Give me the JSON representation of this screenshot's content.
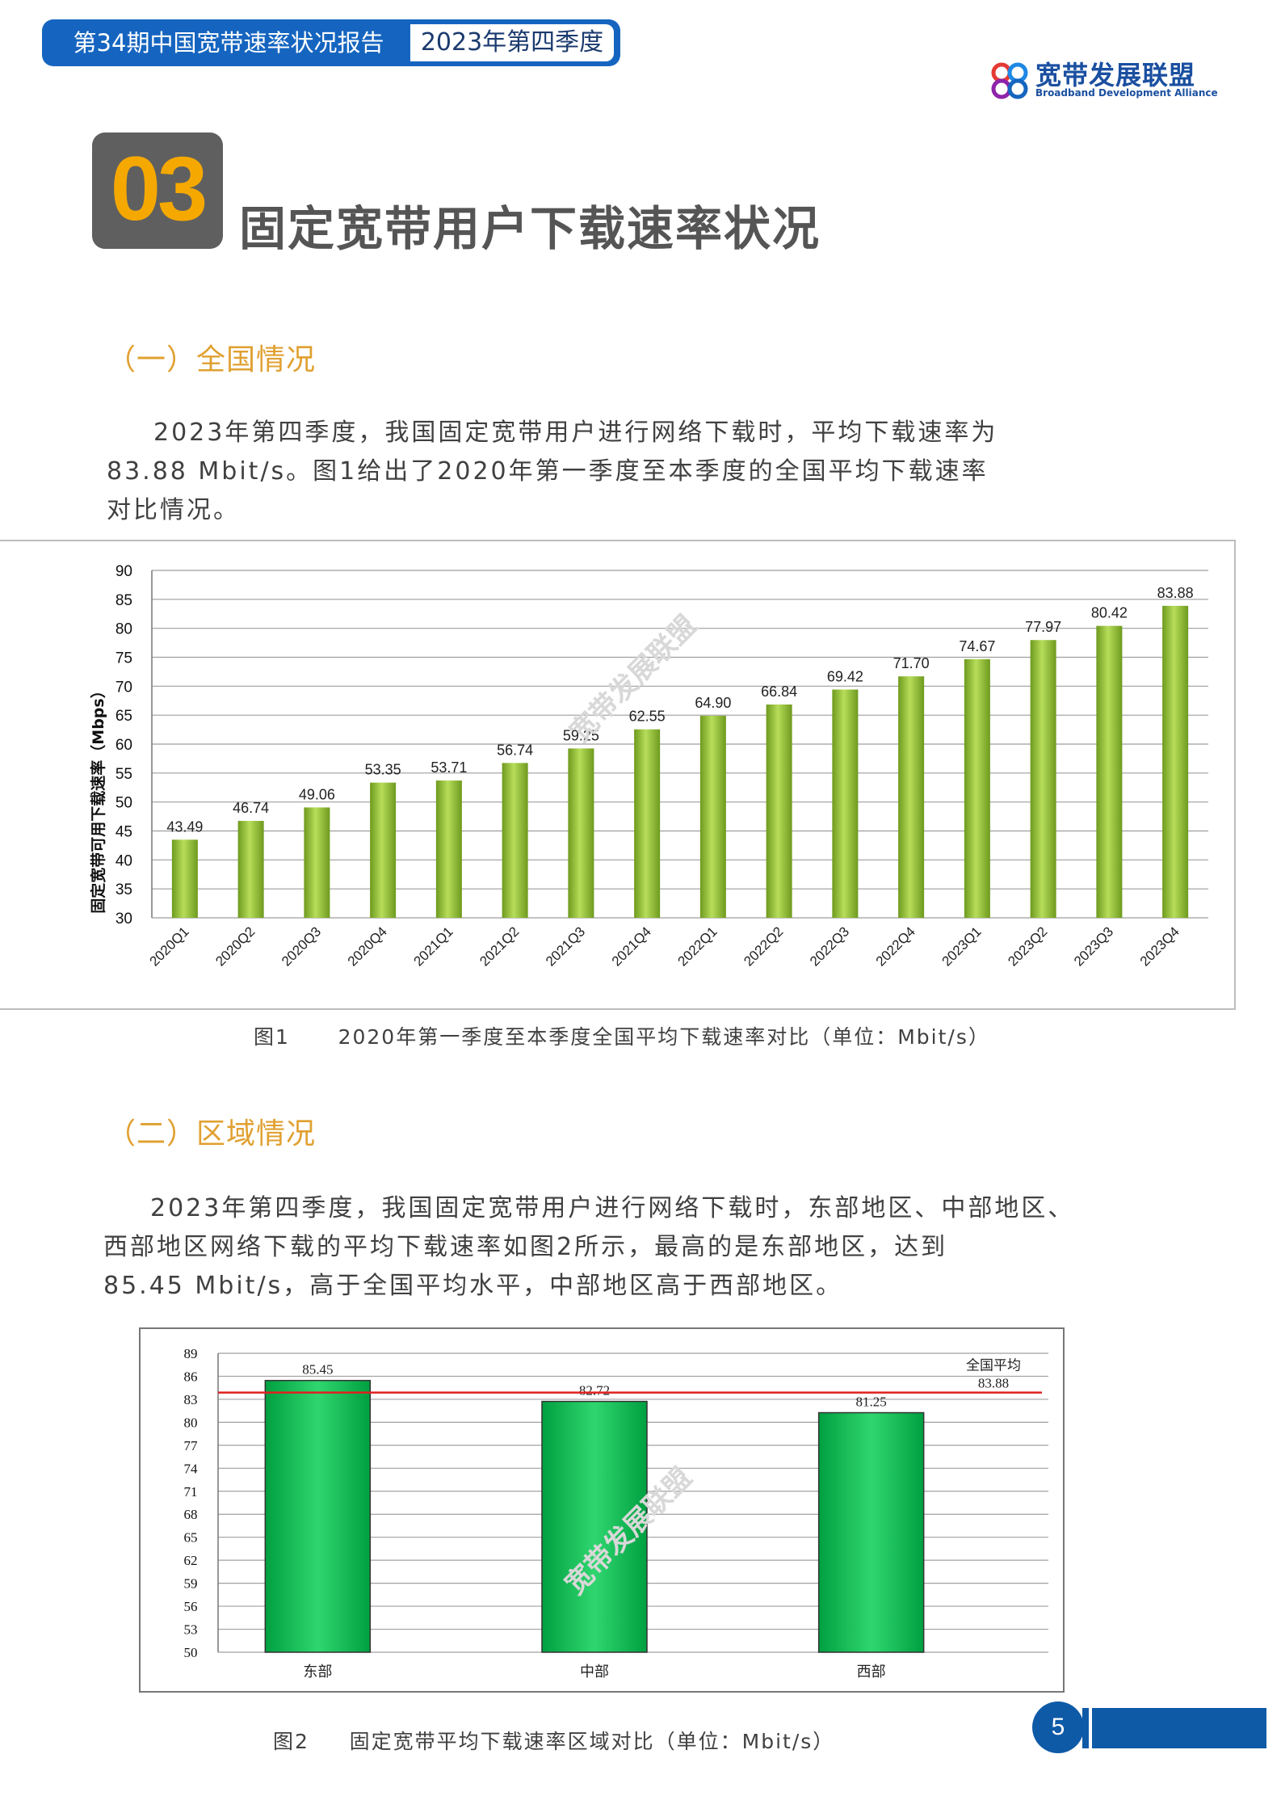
{
  "header": {
    "report_title": "第34期中国宽带速率状况报告",
    "period": "2023年第四季度"
  },
  "logo": {
    "name_cn": "宽带发展联盟",
    "name_en": "Broadband Development Alliance"
  },
  "chapter": {
    "number": "03",
    "title": "固定宽带用户下载速率状况"
  },
  "section1": {
    "title": "（一）全国情况",
    "lines": [
      "2023年第四季度，我国固定宽带用户进行网络下载时，平均下载速率为",
      "83.88 Mbit/s。图1给出了2020年第一季度至本季度的全国平均下载速率",
      "对比情况。"
    ],
    "figure_label": "图1",
    "figure_caption": "2020年第一季度至本季度全国平均下载速率对比（单位：Mbit/s）"
  },
  "section2": {
    "title": "（二）区域情况",
    "lines": [
      "2023年第四季度，我国固定宽带用户进行网络下载时，东部地区、中部地区、",
      "西部地区网络下载的平均下载速率如图2所示，最高的是东部地区，达到",
      "85.45 Mbit/s，高于全国平均水平，中部地区高于西部地区。"
    ],
    "figure_label": "图2",
    "figure_caption": "固定宽带平均下载速率区域对比（单位：Mbit/s）"
  },
  "watermark": "宽带发展联盟",
  "page_number": "5",
  "colors": {
    "banner_blue": "#1565c0",
    "chapter_orange": "#f5a800",
    "section_orange": "#e0a030",
    "bar_green_light": "#8cc63f",
    "bar_green_region": "#00b050",
    "avg_line_red": "#e02020"
  },
  "chart_data": [
    {
      "type": "bar",
      "title": "",
      "xlabel": "",
      "ylabel": "固定宽带可用下载速率（Mbps）",
      "categories": [
        "2020Q1",
        "2020Q2",
        "2020Q3",
        "2020Q4",
        "2021Q1",
        "2021Q2",
        "2021Q3",
        "2021Q4",
        "2022Q1",
        "2022Q2",
        "2022Q3",
        "2022Q4",
        "2023Q1",
        "2023Q2",
        "2023Q3",
        "2023Q4"
      ],
      "values": [
        43.49,
        46.74,
        49.06,
        53.35,
        53.71,
        56.74,
        59.25,
        62.55,
        64.9,
        66.84,
        69.42,
        71.7,
        74.67,
        77.97,
        80.42,
        83.88
      ],
      "value_labels": [
        "43.49",
        "46.74",
        "49.06",
        "53.35",
        "53.71",
        "56.74",
        "59.25",
        "62.55",
        "64.90",
        "66.84",
        "69.42",
        "71.70",
        "74.67",
        "77.97",
        "80.42",
        "83.88"
      ],
      "ylim": [
        30,
        90
      ],
      "yticks": [
        "30",
        "35",
        "40",
        "45",
        "50",
        "55",
        "60",
        "65",
        "70",
        "75",
        "80",
        "85",
        "90"
      ],
      "grid": true,
      "legend": "none"
    },
    {
      "type": "bar",
      "title": "",
      "xlabel": "",
      "ylabel": "",
      "categories": [
        "东部",
        "中部",
        "西部"
      ],
      "values": [
        85.45,
        82.72,
        81.25
      ],
      "value_labels": [
        "85.45",
        "82.72",
        "81.25"
      ],
      "ylim": [
        50,
        89
      ],
      "yticks": [
        "50",
        "53",
        "56",
        "59",
        "62",
        "65",
        "68",
        "71",
        "74",
        "77",
        "80",
        "83",
        "86",
        "89"
      ],
      "reference_line": {
        "label": "全国平均",
        "value": 83.88,
        "value_label": "83.88"
      },
      "grid": true,
      "legend": "none"
    }
  ]
}
